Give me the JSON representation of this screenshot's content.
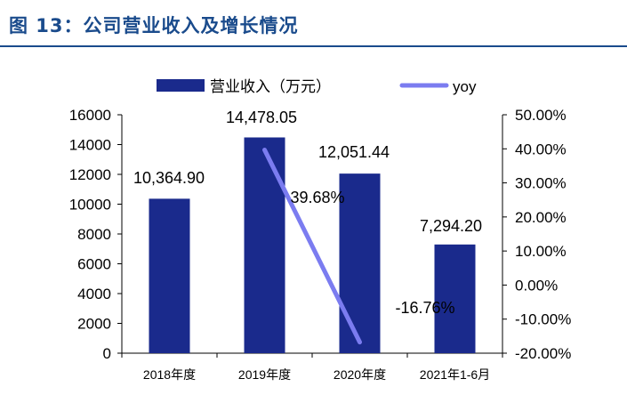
{
  "figure_title": "图 13：公司营业收入及增长情况",
  "colors": {
    "title": "#1a4b8c",
    "bar": "#1a2a8c",
    "line": "#7b7cf0",
    "axis": "#000000"
  },
  "chart_data": {
    "type": "bar",
    "categories": [
      "2018年度",
      "2019年度",
      "2020年度",
      "2021年1-6月"
    ],
    "series": [
      {
        "name": "营业收入（万元）",
        "type": "bar",
        "axis": "left",
        "values": [
          10364.9,
          14478.05,
          12051.44,
          7294.2
        ],
        "labels": [
          "10,364.90",
          "14,478.05",
          "12,051.44",
          "7,294.20"
        ]
      },
      {
        "name": "yoy",
        "type": "line",
        "axis": "right",
        "values": [
          null,
          39.68,
          -16.76,
          null
        ],
        "labels": [
          "",
          "39.68%",
          "-16.76%",
          ""
        ]
      }
    ],
    "y_left": {
      "min": 0,
      "max": 16000,
      "ticks": [
        "0",
        "2000",
        "4000",
        "6000",
        "8000",
        "10000",
        "12000",
        "14000",
        "16000"
      ]
    },
    "y_right": {
      "min": -20,
      "max": 50,
      "ticks": [
        "-20.00%",
        "-10.00%",
        "0.00%",
        "10.00%",
        "20.00%",
        "30.00%",
        "40.00%",
        "50.00%"
      ]
    },
    "legend_position": "top",
    "grid": false
  }
}
